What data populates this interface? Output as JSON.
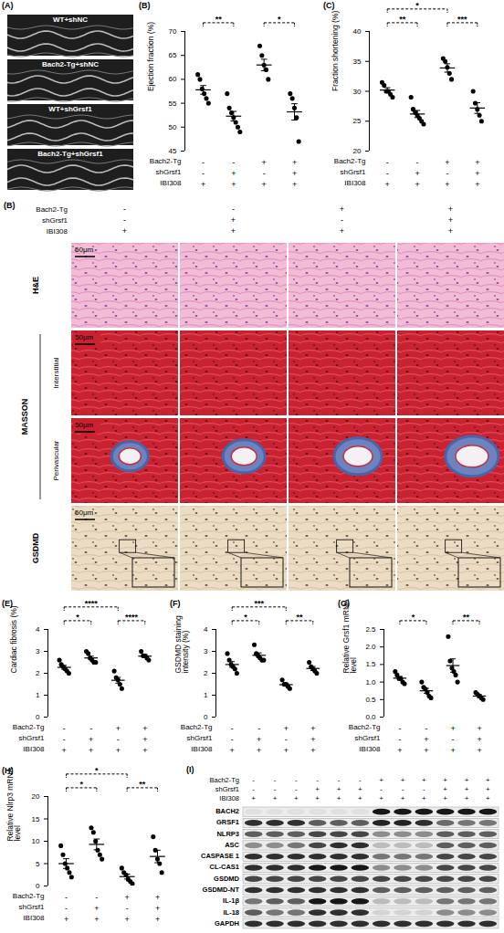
{
  "chart_data": [
    {
      "type": "scatter",
      "panel": "(B)",
      "ylabel": "Ejection fraction (%)",
      "ylim": [
        45,
        70
      ],
      "yticks": [
        45,
        50,
        55,
        60,
        65,
        70
      ],
      "tick_labels": "y",
      "color": "#000000",
      "groups": [
        {
          "values": [
            61,
            60,
            58,
            57,
            56,
            55
          ],
          "mean": 57.8,
          "sem": 0.9
        },
        {
          "values": [
            57,
            54,
            53,
            52,
            51,
            50,
            49
          ],
          "mean": 52.3,
          "sem": 1.0
        },
        {
          "values": [
            67,
            65,
            63,
            62,
            60
          ],
          "mean": 63,
          "sem": 1.2
        },
        {
          "values": [
            57,
            56,
            54,
            52,
            47
          ],
          "mean": 53.2,
          "sem": 1.7
        }
      ],
      "conditions": [
        {
          "name": "Bach2-Tg",
          "signs": [
            "-",
            "-",
            "+",
            "+"
          ]
        },
        {
          "name": "shGrsf1",
          "signs": [
            "-",
            "+",
            "-",
            "+"
          ]
        },
        {
          "name": "IBI308",
          "signs": [
            "+",
            "+",
            "+",
            "+"
          ]
        }
      ],
      "comparisons": [
        {
          "from": 0,
          "to": 1,
          "label": "**"
        },
        {
          "from": 2,
          "to": 3,
          "label": "*"
        }
      ]
    },
    {
      "type": "scatter",
      "panel": "(C)",
      "ylabel": "Fraction shortening (%)",
      "ylim": [
        20,
        40
      ],
      "yticks": [
        20,
        25,
        30,
        35,
        40
      ],
      "tick_labels": "y",
      "color": "#000000",
      "groups": [
        {
          "values": [
            31.5,
            31,
            30,
            30,
            29.5,
            29
          ],
          "mean": 30.2,
          "sem": 0.4
        },
        {
          "values": [
            29,
            27,
            26.5,
            26,
            25.5,
            25,
            24.5
          ],
          "mean": 26.2,
          "sem": 0.6
        },
        {
          "values": [
            35.5,
            35,
            34,
            33,
            32
          ],
          "mean": 33.9,
          "sem": 0.7
        },
        {
          "values": [
            30,
            28,
            27,
            26,
            25
          ],
          "mean": 27.2,
          "sem": 0.9
        }
      ],
      "conditions": [
        {
          "name": "Bach2-Tg",
          "signs": [
            "-",
            "-",
            "+",
            "+"
          ]
        },
        {
          "name": "shGrsf1",
          "signs": [
            "-",
            "+",
            "-",
            "+"
          ]
        },
        {
          "name": "IBI308",
          "signs": [
            "+",
            "+",
            "+",
            "+"
          ]
        }
      ],
      "comparisons": [
        {
          "from": 0,
          "to": 1,
          "label": "**"
        },
        {
          "from": 0,
          "to": 2,
          "label": "*"
        },
        {
          "from": 2,
          "to": 3,
          "label": "***"
        }
      ]
    },
    {
      "type": "scatter",
      "panel": "(E)",
      "ylabel": "Cardiac fibrosis (%)",
      "ylim": [
        0,
        4
      ],
      "yticks": [
        0,
        1,
        2,
        3,
        4
      ],
      "tick_labels": "y",
      "color": "#000000",
      "groups": [
        {
          "values": [
            2.6,
            2.4,
            2.3,
            2.2,
            2.1,
            2.0
          ],
          "mean": 2.27,
          "sem": 0.09
        },
        {
          "values": [
            3.0,
            2.9,
            2.7,
            2.6,
            2.5,
            2.5
          ],
          "mean": 2.7,
          "sem": 0.08
        },
        {
          "values": [
            2.1,
            1.8,
            1.7,
            1.5,
            1.3
          ],
          "mean": 1.68,
          "sem": 0.13
        },
        {
          "values": [
            3.0,
            2.8,
            2.8,
            2.7,
            2.6
          ],
          "mean": 2.78,
          "sem": 0.07
        }
      ],
      "conditions": [
        {
          "name": "Bach2-Tg",
          "signs": [
            "-",
            "-",
            "+",
            "+"
          ]
        },
        {
          "name": "shGrsf1",
          "signs": [
            "-",
            "+",
            "-",
            "+"
          ]
        },
        {
          "name": "IBI308",
          "signs": [
            "+",
            "+",
            "+",
            "+"
          ]
        }
      ],
      "comparisons": [
        {
          "from": 0,
          "to": 1,
          "label": "*"
        },
        {
          "from": 0,
          "to": 2,
          "label": "****"
        },
        {
          "from": 2,
          "to": 3,
          "label": "****"
        }
      ]
    },
    {
      "type": "scatter",
      "panel": "(F)",
      "ylabel": "GSDMD staining intensity (%)",
      "ylim": [
        0,
        4
      ],
      "yticks": [
        0,
        1,
        2,
        3,
        4
      ],
      "tick_labels": "y",
      "color": "#000000",
      "groups": [
        {
          "values": [
            2.9,
            2.6,
            2.4,
            2.3,
            2.2,
            2.0
          ],
          "mean": 2.4,
          "sem": 0.13
        },
        {
          "values": [
            3.3,
            2.9,
            2.8,
            2.7,
            2.6,
            2.6
          ],
          "mean": 2.82,
          "sem": 0.11
        },
        {
          "values": [
            1.7,
            1.5,
            1.5,
            1.4,
            1.3
          ],
          "mean": 1.48,
          "sem": 0.07
        },
        {
          "values": [
            2.5,
            2.3,
            2.2,
            2.1,
            2.0
          ],
          "mean": 2.22,
          "sem": 0.09
        }
      ],
      "conditions": [
        {
          "name": "Bach2-Tg",
          "signs": [
            "-",
            "-",
            "+",
            "+"
          ]
        },
        {
          "name": "shGrsf1",
          "signs": [
            "-",
            "+",
            "-",
            "+"
          ]
        },
        {
          "name": "IBI308",
          "signs": [
            "+",
            "+",
            "+",
            "+"
          ]
        }
      ],
      "comparisons": [
        {
          "from": 0,
          "to": 1,
          "label": "*"
        },
        {
          "from": 0,
          "to": 2,
          "label": "***"
        },
        {
          "from": 2,
          "to": 3,
          "label": "**"
        }
      ]
    },
    {
      "type": "scatter",
      "panel": "(G)",
      "ylabel": "Relative Grsf1 mRNA level",
      "ylim": [
        0,
        2.5
      ],
      "yticks": [
        {
          "value": 0,
          "label": "0.0"
        },
        0.5,
        {
          "value": 1,
          "label": "1.0"
        },
        1.5,
        {
          "value": 2,
          "label": "2.0"
        },
        2.5
      ],
      "tick_labels": "y",
      "color": "#000000",
      "groups": [
        {
          "values": [
            1.3,
            1.2,
            1.1,
            1.1,
            1.0,
            0.95
          ],
          "mean": 1.11,
          "sem": 0.05
        },
        {
          "values": [
            1.0,
            0.85,
            0.8,
            0.7,
            0.6,
            0.55
          ],
          "mean": 0.75,
          "sem": 0.07
        },
        {
          "values": [
            2.3,
            1.6,
            1.4,
            1.3,
            1.2,
            1.0
          ],
          "mean": 1.47,
          "sem": 0.19
        },
        {
          "values": [
            0.7,
            0.65,
            0.6,
            0.55,
            0.5
          ],
          "mean": 0.6,
          "sem": 0.04
        }
      ],
      "conditions": [
        {
          "name": "Bach2-Tg",
          "signs": [
            "-",
            "-",
            "+",
            "+"
          ]
        },
        {
          "name": "shGrsf1",
          "signs": [
            "-",
            "+",
            "-",
            "+"
          ]
        },
        {
          "name": "IBI308",
          "signs": [
            "+",
            "+",
            "+",
            "+"
          ]
        }
      ],
      "comparisons": [
        {
          "from": 0,
          "to": 1,
          "label": "*"
        },
        {
          "from": 2,
          "to": 3,
          "label": "**"
        }
      ]
    },
    {
      "type": "scatter",
      "panel": "(H)",
      "ylabel": "Relative Nlrp3 mRNA level",
      "ylim": [
        0,
        20
      ],
      "yticks": [
        0,
        5,
        10,
        15,
        20
      ],
      "tick_labels": "y",
      "color": "#000000",
      "groups": [
        {
          "values": [
            9,
            7,
            5,
            4,
            3,
            2
          ],
          "mean": 5,
          "sem": 1.1
        },
        {
          "values": [
            13,
            12,
            10,
            8,
            7,
            6
          ],
          "mean": 9.3,
          "sem": 1.2
        },
        {
          "values": [
            4,
            3,
            2.5,
            1.5,
            1,
            0.5
          ],
          "mean": 2.1,
          "sem": 0.54
        },
        {
          "values": [
            11,
            8,
            6,
            5,
            3
          ],
          "mean": 6.6,
          "sem": 1.4
        }
      ],
      "conditions": [
        {
          "name": "Bach2-Tg",
          "signs": [
            "-",
            "-",
            "+",
            "+"
          ]
        },
        {
          "name": "shGrsf1",
          "signs": [
            "-",
            "+",
            "-",
            "+"
          ]
        },
        {
          "name": "IBI308",
          "signs": [
            "+",
            "+",
            "+",
            "+"
          ]
        }
      ],
      "comparisons": [
        {
          "from": 0,
          "to": 1,
          "label": "*"
        },
        {
          "from": 0,
          "to": 2,
          "label": "*"
        },
        {
          "from": 2,
          "to": 3,
          "label": "**"
        }
      ]
    }
  ],
  "echo": {
    "panel": "(A)",
    "labels": [
      "WT+shNC",
      "Bach2-Tg+shNC",
      "WT+shGrsf1",
      "Bach2-Tg+shGrsf1"
    ]
  },
  "histology": {
    "panel": "(B)",
    "conditions": [
      {
        "name": "Bach2-Tg",
        "signs": [
          "-",
          "-",
          "+",
          "+"
        ]
      },
      {
        "name": "shGrsf1",
        "signs": [
          "-",
          "+",
          "-",
          "+"
        ]
      },
      {
        "name": "IBI308",
        "signs": [
          "+",
          "+",
          "+",
          "+"
        ]
      }
    ],
    "rows": [
      {
        "label": "H&E"
      },
      {
        "group": "MASSON",
        "label": "Interstitial"
      },
      {
        "group": "MASSON",
        "label": "Perivascular"
      },
      {
        "label": "GSDMD"
      }
    ],
    "scale_bar": "50μm"
  },
  "blot": {
    "panel": "(I)",
    "conditions": [
      {
        "name": "Bach2-Tg",
        "signs": [
          "-",
          "-",
          "-",
          "-",
          "-",
          "-",
          "+",
          "+",
          "+",
          "+",
          "+",
          "+"
        ]
      },
      {
        "name": "shGrsf1",
        "signs": [
          "-",
          "-",
          "-",
          "+",
          "+",
          "+",
          "-",
          "-",
          "-",
          "+",
          "+",
          "+"
        ]
      },
      {
        "name": "IBI308",
        "signs": [
          "+",
          "+",
          "+",
          "+",
          "+",
          "+",
          "+",
          "+",
          "+",
          "+",
          "+",
          "+"
        ]
      }
    ],
    "proteins": [
      {
        "name": "BACH2",
        "intensity": [
          0.05,
          0.05,
          0.05,
          0.05,
          0.05,
          0.05,
          0.9,
          0.9,
          0.9,
          0.9,
          0.9,
          0.9
        ]
      },
      {
        "name": "GRSF1",
        "intensity": [
          0.8,
          0.8,
          0.8,
          0.6,
          0.6,
          0.6,
          0.85,
          0.85,
          0.8,
          0.55,
          0.5,
          0.5
        ]
      },
      {
        "name": "NLRP3",
        "intensity": [
          0.6,
          0.6,
          0.6,
          0.7,
          0.7,
          0.7,
          0.4,
          0.4,
          0.4,
          0.6,
          0.6,
          0.6
        ]
      },
      {
        "name": "ASC",
        "intensity": [
          0.4,
          0.4,
          0.5,
          0.7,
          0.8,
          0.8,
          0.2,
          0.2,
          0.2,
          0.6,
          0.6,
          0.6
        ]
      },
      {
        "name": "CASPASE 1",
        "intensity": [
          0.8,
          0.8,
          0.8,
          0.8,
          0.8,
          0.8,
          0.5,
          0.5,
          0.5,
          0.7,
          0.7,
          0.7
        ]
      },
      {
        "name": "CL-CAS1",
        "intensity": [
          0.8,
          0.8,
          0.8,
          0.9,
          0.9,
          0.9,
          0.4,
          0.4,
          0.4,
          0.7,
          0.7,
          0.7
        ]
      },
      {
        "name": "GSDMD",
        "intensity": [
          0.7,
          0.7,
          0.7,
          0.7,
          0.7,
          0.7,
          0.7,
          0.7,
          0.7,
          0.7,
          0.7,
          0.7
        ]
      },
      {
        "name": "GSDMD-NT",
        "intensity": [
          0.8,
          0.8,
          0.8,
          0.8,
          0.8,
          0.8,
          0.6,
          0.6,
          0.6,
          0.6,
          0.6,
          0.6
        ]
      },
      {
        "name": "IL-1β",
        "intensity": [
          0.5,
          0.6,
          0.6,
          0.9,
          0.9,
          0.9,
          0.2,
          0.2,
          0.2,
          0.5,
          0.5,
          0.5
        ]
      },
      {
        "name": "IL-18",
        "intensity": [
          0.6,
          0.5,
          0.5,
          0.8,
          0.8,
          0.8,
          0.1,
          0.1,
          0.1,
          0.4,
          0.4,
          0.4
        ]
      },
      {
        "name": "GAPDH",
        "intensity": [
          0.8,
          0.8,
          0.8,
          0.8,
          0.8,
          0.8,
          0.8,
          0.8,
          0.8,
          0.8,
          0.8,
          0.8
        ]
      }
    ]
  }
}
